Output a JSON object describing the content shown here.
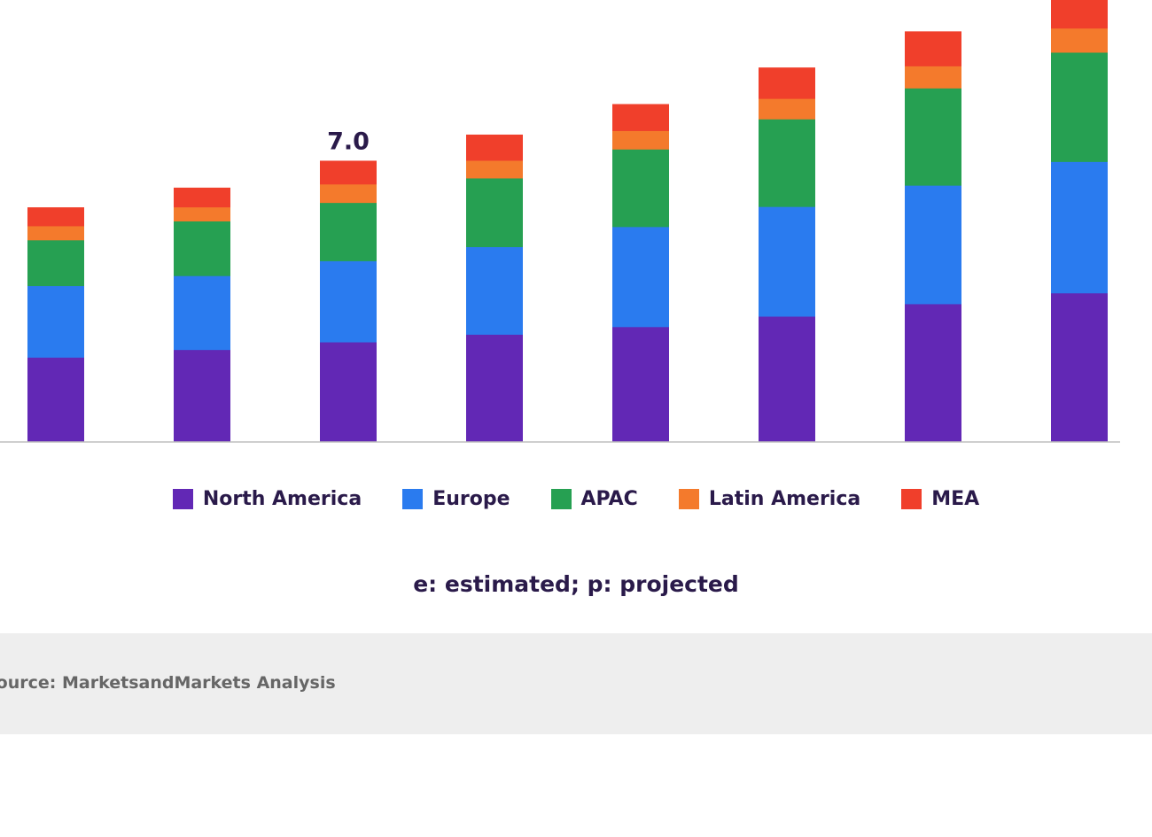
{
  "chart_data": {
    "type": "bar",
    "stacked": true,
    "categories": [
      "",
      "",
      "",
      "",
      "",
      "",
      "",
      ""
    ],
    "series": [
      {
        "name": "North America",
        "color": "#6228b5",
        "values": [
          2.11,
          2.3,
          2.49,
          2.68,
          2.87,
          3.13,
          3.44,
          3.71
        ]
      },
      {
        "name": "Europe",
        "color": "#2a7bef",
        "values": [
          1.78,
          1.84,
          2.02,
          2.18,
          2.49,
          2.73,
          2.95,
          3.27
        ]
      },
      {
        "name": "APAC",
        "color": "#26a052",
        "values": [
          1.14,
          1.36,
          1.45,
          1.71,
          1.93,
          2.18,
          2.42,
          2.72
        ]
      },
      {
        "name": "Latin America",
        "color": "#f47a2c",
        "values": [
          0.35,
          0.35,
          0.46,
          0.44,
          0.46,
          0.51,
          0.55,
          0.6
        ]
      },
      {
        "name": "MEA",
        "color": "#f03f2b",
        "values": [
          0.46,
          0.48,
          0.58,
          0.64,
          0.66,
          0.77,
          0.86,
          0.9
        ]
      }
    ],
    "totals": [
      5.84,
      6.33,
      7.0,
      7.65,
      8.41,
      9.32,
      10.22,
      11.2
    ],
    "data_labels": [
      {
        "index": 2,
        "text": "7.0"
      }
    ],
    "ylim": [
      0,
      11.0
    ],
    "grid": false,
    "legend_position": "bottom"
  },
  "footnote": "e: estimated; p: projected",
  "source": "Source: MarketsandMarkets Analysis"
}
